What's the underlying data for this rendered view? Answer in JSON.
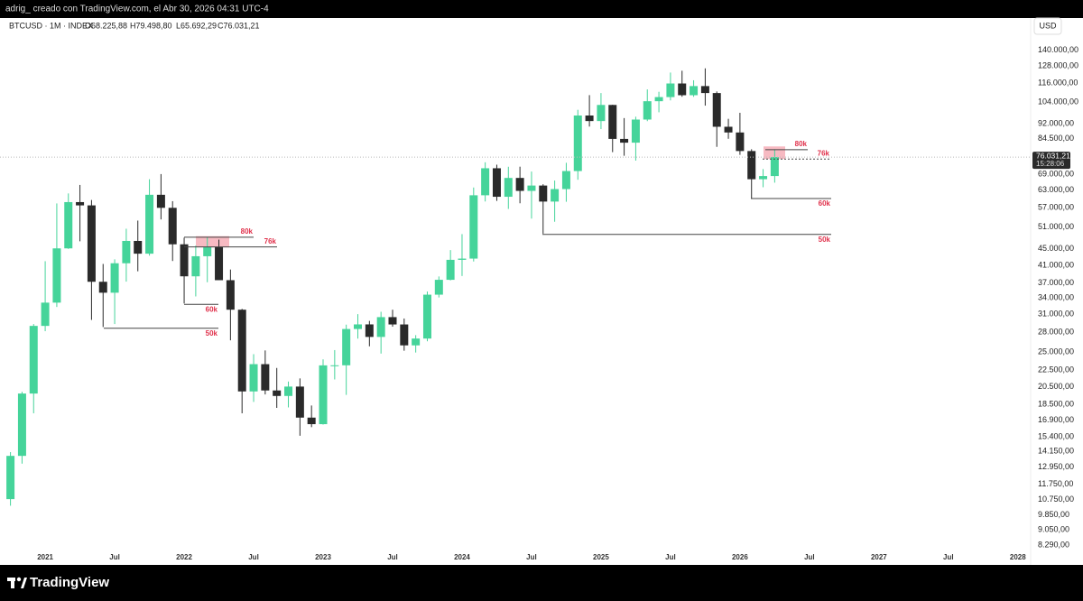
{
  "header": {
    "title": "adrig_ creado con TradingView.com, el Abr 30, 2026 04:31 UTC-4"
  },
  "footer": {
    "brand": "TradingView"
  },
  "chart_data": {
    "type": "candlestick",
    "symbol": "BTCUSD · 1M · INDEX",
    "ohlc_labels": [
      "O68.225,88",
      "H79.498,80",
      "L65.692,29",
      "C76.031,21"
    ],
    "currency": "USD",
    "last_price_label": "76.031,21",
    "countdown": "15:28:06",
    "log_scale": true,
    "grid": false,
    "up_color": "#45d49a",
    "down_color": "#2a2a2a",
    "ylim": [
      8040,
      168200
    ],
    "yticks": [
      {
        "value": 140000,
        "label": "140.000,00"
      },
      {
        "value": 128000,
        "label": "128.000,00"
      },
      {
        "value": 116000,
        "label": "116.000,00"
      },
      {
        "value": 104000,
        "label": "104.000,00"
      },
      {
        "value": 92000,
        "label": "92.000,00"
      },
      {
        "value": 84500,
        "label": "84.500,00"
      },
      {
        "value": 69000,
        "label": "69.000,00"
      },
      {
        "value": 63000,
        "label": "63.000,00"
      },
      {
        "value": 57000,
        "label": "57.000,00"
      },
      {
        "value": 51000,
        "label": "51.000,00"
      },
      {
        "value": 45000,
        "label": "45.000,00"
      },
      {
        "value": 41000,
        "label": "41.000,00"
      },
      {
        "value": 37000,
        "label": "37.000,00"
      },
      {
        "value": 34000,
        "label": "34.000,00"
      },
      {
        "value": 31000,
        "label": "31.000,00"
      },
      {
        "value": 28000,
        "label": "28.000,00"
      },
      {
        "value": 25000,
        "label": "25.000,00"
      },
      {
        "value": 22500,
        "label": "22.500,00"
      },
      {
        "value": 20500,
        "label": "20.500,00"
      },
      {
        "value": 18500,
        "label": "18.500,00"
      },
      {
        "value": 16900,
        "label": "16.900,00"
      },
      {
        "value": 15400,
        "label": "15.400,00"
      },
      {
        "value": 14150,
        "label": "14.150,00"
      },
      {
        "value": 12950,
        "label": "12.950,00"
      },
      {
        "value": 11750,
        "label": "11.750,00"
      },
      {
        "value": 10750,
        "label": "10.750,00"
      },
      {
        "value": 9850,
        "label": "9.850,00"
      },
      {
        "value": 9050,
        "label": "9.050,00"
      },
      {
        "value": 8290,
        "label": "8.290,00"
      }
    ],
    "categories": [
      null,
      null,
      null,
      "2021",
      null,
      null,
      null,
      null,
      null,
      "Jul",
      null,
      null,
      null,
      null,
      null,
      "2022",
      null,
      null,
      null,
      null,
      null,
      "Jul",
      null,
      null,
      null,
      null,
      null,
      "2023",
      null,
      null,
      null,
      null,
      null,
      "Jul",
      null,
      null,
      null,
      null,
      null,
      "2024",
      null,
      null,
      null,
      null,
      null,
      "Jul",
      null,
      null,
      null,
      null,
      null,
      "2025",
      null,
      null,
      null,
      null,
      null,
      "Jul",
      null,
      null,
      null,
      null,
      null,
      "2026",
      null,
      null,
      null,
      null,
      null,
      "Jul",
      null,
      null,
      null,
      null,
      null,
      "2027",
      null,
      null,
      null,
      null,
      null,
      "Jul",
      null,
      null,
      null,
      null,
      null,
      "2028"
    ],
    "open": [
      10780,
      13800,
      19700,
      28990,
      33110,
      45140,
      58790,
      57700,
      37300,
      35040,
      41460,
      47100,
      43790,
      61300,
      56900,
      46200,
      38480,
      43160,
      45510,
      37640,
      31800,
      19940,
      23300,
      20050,
      19430,
      20500,
      17170,
      16540,
      23140,
      23150,
      28480,
      29240,
      27220,
      30480,
      29230,
      25940,
      26970,
      34650,
      37720,
      42280,
      42580,
      61130,
      71330,
      60610,
      67490,
      62680,
      64620,
      58970,
      63330,
      70200,
      96400,
      93400,
      102400,
      84350,
      82550,
      94200,
      104600,
      107100,
      115750,
      108250,
      114050,
      109600,
      90400,
      87500,
      78700,
      67000,
      68225.88,
      null,
      null,
      null,
      null,
      null,
      null,
      null,
      null,
      null,
      null,
      null,
      null,
      null,
      null,
      null,
      null,
      null,
      null,
      null,
      null,
      null
    ],
    "high": [
      14100,
      19900,
      29300,
      41950,
      58350,
      61780,
      64850,
      59500,
      41300,
      42400,
      50500,
      52900,
      67000,
      69000,
      59100,
      47990,
      45850,
      48200,
      47450,
      40000,
      31950,
      24670,
      25200,
      22800,
      21100,
      21480,
      18400,
      23950,
      25250,
      29200,
      31000,
      29830,
      31430,
      31800,
      30240,
      27500,
      35280,
      38450,
      44700,
      48970,
      63900,
      73800,
      72800,
      71950,
      71980,
      70000,
      65100,
      66500,
      73600,
      99600,
      108300,
      109600,
      102500,
      95000,
      95750,
      111900,
      110400,
      123200,
      124500,
      117900,
      126200,
      110600,
      94600,
      97900,
      79500,
      71000,
      79498.8,
      null,
      null,
      null,
      null,
      null,
      null,
      null,
      null,
      null,
      null,
      null,
      null,
      null,
      null,
      null,
      null,
      null,
      null,
      null,
      null,
      null
    ],
    "low": [
      10380,
      13200,
      17600,
      28130,
      32300,
      45000,
      47000,
      30000,
      28800,
      29300,
      37330,
      39600,
      43300,
      53250,
      42000,
      32950,
      34300,
      37200,
      37700,
      26700,
      17600,
      18780,
      19600,
      18150,
      18200,
      15480,
      16260,
      16500,
      21350,
      19550,
      26950,
      25800,
      24750,
      28860,
      25160,
      24900,
      26550,
      34100,
      37600,
      38550,
      41880,
      59000,
      59200,
      56550,
      58400,
      53500,
      49100,
      52550,
      58900,
      66800,
      90500,
      89200,
      78200,
      76600,
      74500,
      93350,
      98200,
      105100,
      107300,
      107250,
      102000,
      80600,
      84400,
      77000,
      60000,
      64000,
      65692.29,
      null,
      null,
      null,
      null,
      null,
      null,
      null,
      null,
      null,
      null,
      null,
      null,
      null,
      null,
      null,
      null,
      null,
      null,
      null,
      null,
      null
    ],
    "close": [
      13800,
      19700,
      28990,
      33110,
      45140,
      58790,
      57700,
      37300,
      35040,
      41460,
      47100,
      43790,
      61300,
      56900,
      46200,
      38480,
      43160,
      45510,
      37640,
      31800,
      19940,
      23300,
      20050,
      19430,
      20500,
      17170,
      16540,
      23140,
      23150,
      28480,
      29240,
      27220,
      30480,
      29230,
      25940,
      26970,
      34650,
      37720,
      42280,
      42580,
      61130,
      71330,
      60610,
      67490,
      62680,
      64620,
      58970,
      63330,
      70200,
      96400,
      93400,
      102400,
      84350,
      82550,
      94200,
      104600,
      107100,
      115750,
      108250,
      114050,
      109600,
      90400,
      87500,
      78700,
      67000,
      68225.88,
      76031.21,
      null,
      null,
      null,
      null,
      null,
      null,
      null,
      null,
      null,
      null,
      null,
      null,
      null,
      null,
      null,
      null,
      null,
      null,
      null,
      null,
      null
    ],
    "levels": [
      {
        "label": "80k",
        "value": 48100
      },
      {
        "label": "76k",
        "value": 45500
      },
      {
        "label": "60k",
        "value": 32800
      },
      {
        "label": "50k",
        "value": 28600
      },
      {
        "label": "80k",
        "value": 79300
      },
      {
        "label": "76k",
        "value": 75200
      },
      {
        "label": "60k",
        "value": 60000
      },
      {
        "label": "50k",
        "value": 48900
      }
    ],
    "zones": [
      {
        "low": 45400,
        "high": 48400
      },
      {
        "low": 75200,
        "high": 80800
      }
    ],
    "annotation_color": "#e0314b",
    "zone_color": "#f4a3ad"
  }
}
